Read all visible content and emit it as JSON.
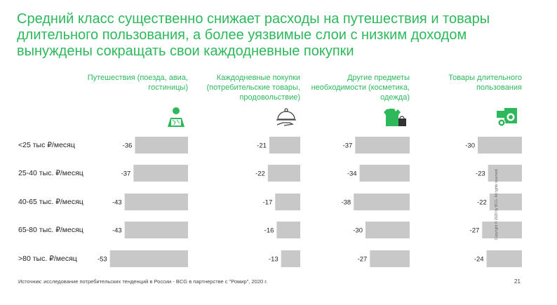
{
  "title": "Средний класс существенно снижает расходы на путешествия и товары длительного пользования, а более уязвимые слои с низким доходом вынуждены сокращать свои каждодневные покупки",
  "colors": {
    "accent": "#2db85c",
    "bar": "#c8c8c8"
  },
  "icons": [
    "map-icon",
    "cloche-icon",
    "clothing-icon",
    "appliances-icon"
  ],
  "chart_data": {
    "type": "bar",
    "orientation": "horizontal",
    "categories": [
      "<25 тыс ₽/месяц",
      "25-40 тыс. ₽/месяц",
      "40-65 тыс. ₽/месяц",
      "65-80 тыс. ₽/месяц",
      ">80 тыс. ₽/месяц"
    ],
    "series": [
      {
        "name": "Путешествия (поезда, авиа, гостиницы)",
        "values": [
          -36,
          -37,
          -43,
          -43,
          -53
        ]
      },
      {
        "name": "Каждодневные покупки (потребительские товары, продовольствие)",
        "values": [
          -21,
          -22,
          -17,
          -16,
          -13
        ]
      },
      {
        "name": "Другие предметы необходимости (косметика, одежда)",
        "values": [
          -37,
          -34,
          -38,
          -30,
          -27
        ]
      },
      {
        "name": "Товары длительного пользования",
        "values": [
          -30,
          -23,
          -22,
          -27,
          -24
        ]
      }
    ],
    "grid": false,
    "legend": "column headers"
  },
  "footer": {
    "source": "Источник: исследование потребительских тенденций в России - BCG в партнерстве с \"Ромир\", 2020 г.",
    "page": "21",
    "copyright": "Copyright © 2020 by BCG. All rights reserved."
  }
}
